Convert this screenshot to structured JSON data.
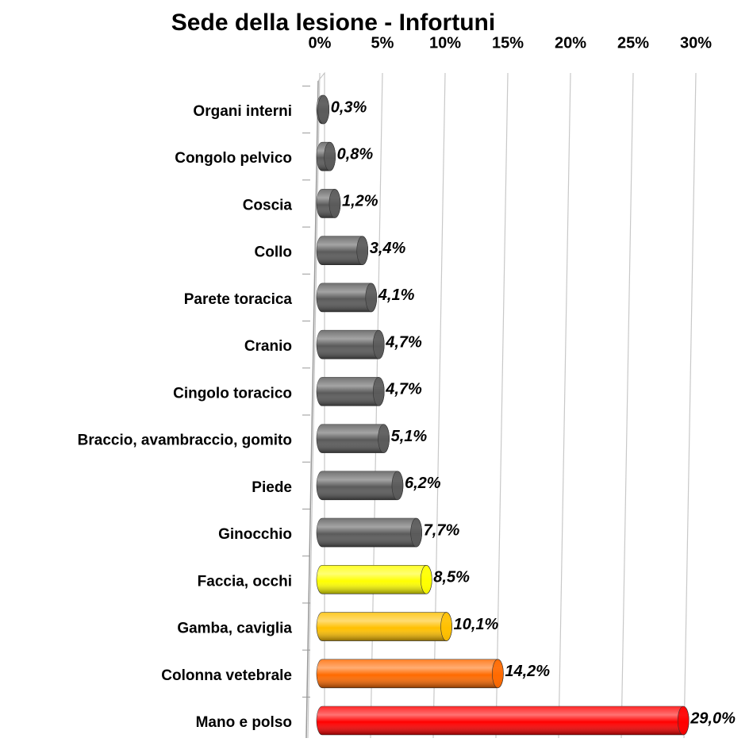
{
  "chart_data": {
    "type": "barh",
    "title": "Sede della lesione - Infortuni",
    "categories": [
      "Organi interni",
      "Congolo pelvico",
      "Coscia",
      "Collo",
      "Parete toracica",
      "Cranio",
      "Cingolo toracico",
      "Braccio, avambraccio, gomito",
      "Piede",
      "Ginocchio",
      "Faccia, occhi",
      "Gamba, caviglia",
      "Colonna vetebrale",
      "Mano e polso"
    ],
    "values": [
      0.3,
      0.8,
      1.2,
      3.4,
      4.1,
      4.7,
      4.7,
      5.1,
      6.2,
      7.7,
      8.5,
      10.1,
      14.2,
      29.0
    ],
    "value_labels": [
      "0,3%",
      "0,8%",
      "1,2%",
      "3,4%",
      "4,1%",
      "4,7%",
      "4,7%",
      "5,1%",
      "6,2%",
      "7,7%",
      "8,5%",
      "10,1%",
      "14,2%",
      "29,0%"
    ],
    "colors": [
      "#5a5a5a",
      "#5a5a5a",
      "#5a5a5a",
      "#5a5a5a",
      "#5a5a5a",
      "#5a5a5a",
      "#5a5a5a",
      "#5a5a5a",
      "#5a5a5a",
      "#5a5a5a",
      "#ffff00",
      "#ffc000",
      "#ff6a00",
      "#ff0000"
    ],
    "xlim": [
      0,
      30
    ],
    "xticks": [
      {
        "value": 0,
        "label": "0%"
      },
      {
        "value": 5,
        "label": "5%"
      },
      {
        "value": 10,
        "label": "10%"
      },
      {
        "value": 15,
        "label": "15%"
      },
      {
        "value": 20,
        "label": "20%"
      },
      {
        "value": 25,
        "label": "25%"
      },
      {
        "value": 30,
        "label": "30%"
      }
    ],
    "grid": true
  }
}
